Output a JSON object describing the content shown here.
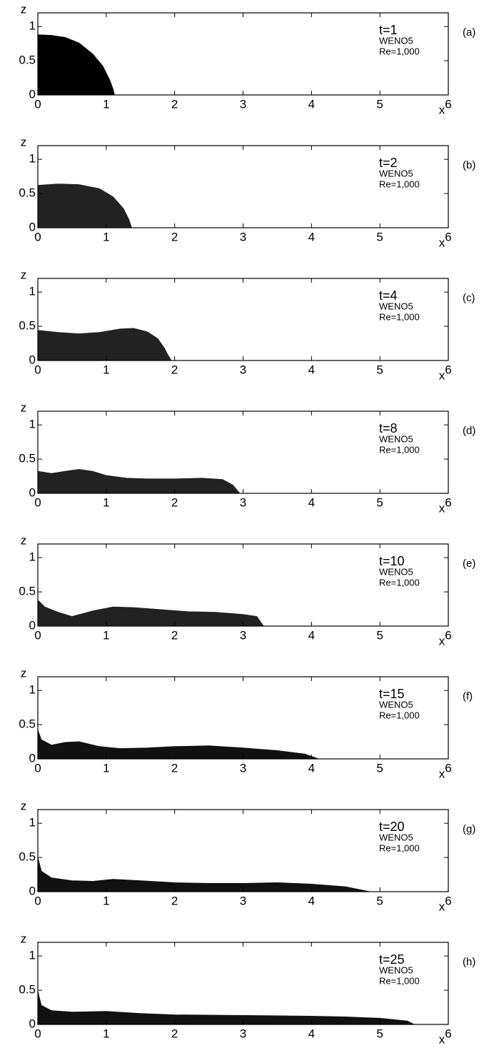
{
  "chart_data": [
    {
      "type": "area",
      "panel_label": "(a)",
      "annotations": [
        "t=1",
        "WENO5",
        "Re=1,000"
      ],
      "xlabel": "x",
      "ylabel": "z",
      "color": "#000000",
      "x": [
        0,
        0.2,
        0.4,
        0.6,
        0.8,
        0.95,
        1.05,
        1.1,
        1.12
      ],
      "values": [
        0.88,
        0.87,
        0.84,
        0.76,
        0.6,
        0.42,
        0.22,
        0.08,
        0
      ],
      "xlim": [
        0,
        6
      ],
      "ylim": [
        0,
        1.2
      ],
      "xticks": [
        0,
        1,
        2,
        3,
        4,
        5,
        6
      ],
      "yticks": [
        0,
        0.5,
        1
      ]
    },
    {
      "type": "area",
      "panel_label": "(b)",
      "annotations": [
        "t=2",
        "WENO5",
        "Re=1,000"
      ],
      "xlabel": "x",
      "ylabel": "z",
      "color": "#222222",
      "x": [
        0,
        0.3,
        0.6,
        0.9,
        1.1,
        1.25,
        1.33,
        1.37
      ],
      "values": [
        0.62,
        0.64,
        0.63,
        0.57,
        0.45,
        0.28,
        0.12,
        0
      ],
      "xlim": [
        0,
        6
      ],
      "ylim": [
        0,
        1.2
      ],
      "xticks": [
        0,
        1,
        2,
        3,
        4,
        5,
        6
      ],
      "yticks": [
        0,
        0.5,
        1
      ]
    },
    {
      "type": "area",
      "panel_label": "(c)",
      "annotations": [
        "t=4",
        "WENO5",
        "Re=1,000"
      ],
      "xlabel": "x",
      "ylabel": "z",
      "color": "#222222",
      "x": [
        0,
        0.3,
        0.6,
        0.9,
        1.2,
        1.4,
        1.6,
        1.75,
        1.85,
        1.9,
        1.95
      ],
      "values": [
        0.44,
        0.41,
        0.39,
        0.41,
        0.46,
        0.47,
        0.42,
        0.32,
        0.18,
        0.08,
        0
      ],
      "xlim": [
        0,
        6
      ],
      "ylim": [
        0,
        1.2
      ],
      "xticks": [
        0,
        1,
        2,
        3,
        4,
        5,
        6
      ],
      "yticks": [
        0,
        0.5,
        1
      ]
    },
    {
      "type": "area",
      "panel_label": "(d)",
      "annotations": [
        "t=8",
        "WENO5",
        "Re=1,000"
      ],
      "xlabel": "x",
      "ylabel": "z",
      "color": "#222222",
      "x": [
        0,
        0.2,
        0.4,
        0.6,
        0.8,
        1.0,
        1.3,
        1.6,
        2.0,
        2.4,
        2.7,
        2.85,
        2.95
      ],
      "values": [
        0.32,
        0.29,
        0.32,
        0.35,
        0.32,
        0.26,
        0.22,
        0.21,
        0.21,
        0.22,
        0.2,
        0.12,
        0
      ],
      "xlim": [
        0,
        6
      ],
      "ylim": [
        0,
        1.2
      ],
      "xticks": [
        0,
        1,
        2,
        3,
        4,
        5,
        6
      ],
      "yticks": [
        0,
        0.5,
        1
      ]
    },
    {
      "type": "area",
      "panel_label": "(e)",
      "annotations": [
        "t=10",
        "WENO5",
        "Re=1,000"
      ],
      "xlabel": "x",
      "ylabel": "z",
      "color": "#222222",
      "x": [
        0,
        0.1,
        0.3,
        0.5,
        0.8,
        1.1,
        1.4,
        1.8,
        2.2,
        2.6,
        3.0,
        3.2,
        3.3
      ],
      "values": [
        0.38,
        0.28,
        0.2,
        0.14,
        0.22,
        0.28,
        0.27,
        0.24,
        0.21,
        0.2,
        0.17,
        0.14,
        0
      ],
      "xlim": [
        0,
        6
      ],
      "ylim": [
        0,
        1.2
      ],
      "xticks": [
        0,
        1,
        2,
        3,
        4,
        5,
        6
      ],
      "yticks": [
        0,
        0.5,
        1
      ]
    },
    {
      "type": "area",
      "panel_label": "(f)",
      "annotations": [
        "t=15",
        "WENO5",
        "Re=1,000"
      ],
      "xlabel": "x",
      "ylabel": "z",
      "color": "#111111",
      "x": [
        0,
        0.05,
        0.2,
        0.4,
        0.6,
        0.9,
        1.2,
        1.6,
        2.0,
        2.5,
        3.0,
        3.5,
        3.9,
        4.1
      ],
      "values": [
        0.42,
        0.28,
        0.2,
        0.24,
        0.25,
        0.18,
        0.15,
        0.16,
        0.18,
        0.19,
        0.16,
        0.12,
        0.07,
        0
      ],
      "xlim": [
        0,
        6
      ],
      "ylim": [
        0,
        1.2
      ],
      "xticks": [
        0,
        1,
        2,
        3,
        4,
        5,
        6
      ],
      "yticks": [
        0,
        0.5,
        1
      ]
    },
    {
      "type": "area",
      "panel_label": "(g)",
      "annotations": [
        "t=20",
        "WENO5",
        "Re=1,000"
      ],
      "xlabel": "x",
      "ylabel": "z",
      "color": "#111111",
      "x": [
        0,
        0.05,
        0.2,
        0.5,
        0.8,
        1.1,
        1.5,
        2.0,
        2.5,
        3.0,
        3.5,
        4.0,
        4.5,
        4.85
      ],
      "values": [
        0.5,
        0.3,
        0.2,
        0.16,
        0.15,
        0.18,
        0.16,
        0.13,
        0.12,
        0.12,
        0.13,
        0.11,
        0.07,
        0
      ],
      "xlim": [
        0,
        6
      ],
      "ylim": [
        0,
        1.2
      ],
      "xticks": [
        0,
        1,
        2,
        3,
        4,
        5,
        6
      ],
      "yticks": [
        0,
        0.5,
        1
      ]
    },
    {
      "type": "area",
      "panel_label": "(h)",
      "annotations": [
        "t=25",
        "WENO5",
        "Re=1,000"
      ],
      "xlabel": "x",
      "ylabel": "z",
      "color": "#111111",
      "x": [
        0,
        0.05,
        0.2,
        0.5,
        1.0,
        1.5,
        2.0,
        3.0,
        4.0,
        4.5,
        5.0,
        5.4,
        5.5
      ],
      "values": [
        0.48,
        0.28,
        0.2,
        0.18,
        0.19,
        0.16,
        0.14,
        0.13,
        0.12,
        0.11,
        0.09,
        0.05,
        0
      ],
      "xlim": [
        0,
        6
      ],
      "ylim": [
        0,
        1.2
      ],
      "xticks": [
        0,
        1,
        2,
        3,
        4,
        5,
        6
      ],
      "yticks": [
        0,
        0.5,
        1
      ]
    }
  ]
}
